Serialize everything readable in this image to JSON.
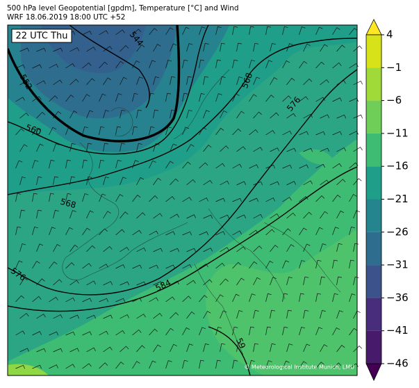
{
  "map": {
    "title": "500 hPa level Geopotential [gpdm], Temperature [°C] and Wind",
    "subtitle": "WRF 18.06.2019 18:00 UTC +52",
    "time_label": "22 UTC Thu",
    "credit": "© Meteorological Institute Munich, LMU",
    "contour_labels": [
      "544",
      "552",
      "560",
      "568",
      "568",
      "576",
      "576",
      "584",
      "59"
    ],
    "colorbar": {
      "ticks": [
        {
          "value": 4,
          "label": "4"
        },
        {
          "value": -1,
          "label": "−1"
        },
        {
          "value": -6,
          "label": "−6"
        },
        {
          "value": -11,
          "label": "−11"
        },
        {
          "value": -16,
          "label": "−16"
        },
        {
          "value": -21,
          "label": "−21"
        },
        {
          "value": -26,
          "label": "−26"
        },
        {
          "value": -31,
          "label": "−31"
        },
        {
          "value": -36,
          "label": "−36"
        },
        {
          "value": -41,
          "label": "−41"
        },
        {
          "value": -46,
          "label": "−46"
        }
      ],
      "colors": [
        "#fde725",
        "#d8e219",
        "#a0da39",
        "#6ece58",
        "#3fbc73",
        "#1f9e89",
        "#25858e",
        "#2e6d8e",
        "#3b528b",
        "#472d7b",
        "#481a6c",
        "#440154"
      ]
    }
  }
}
